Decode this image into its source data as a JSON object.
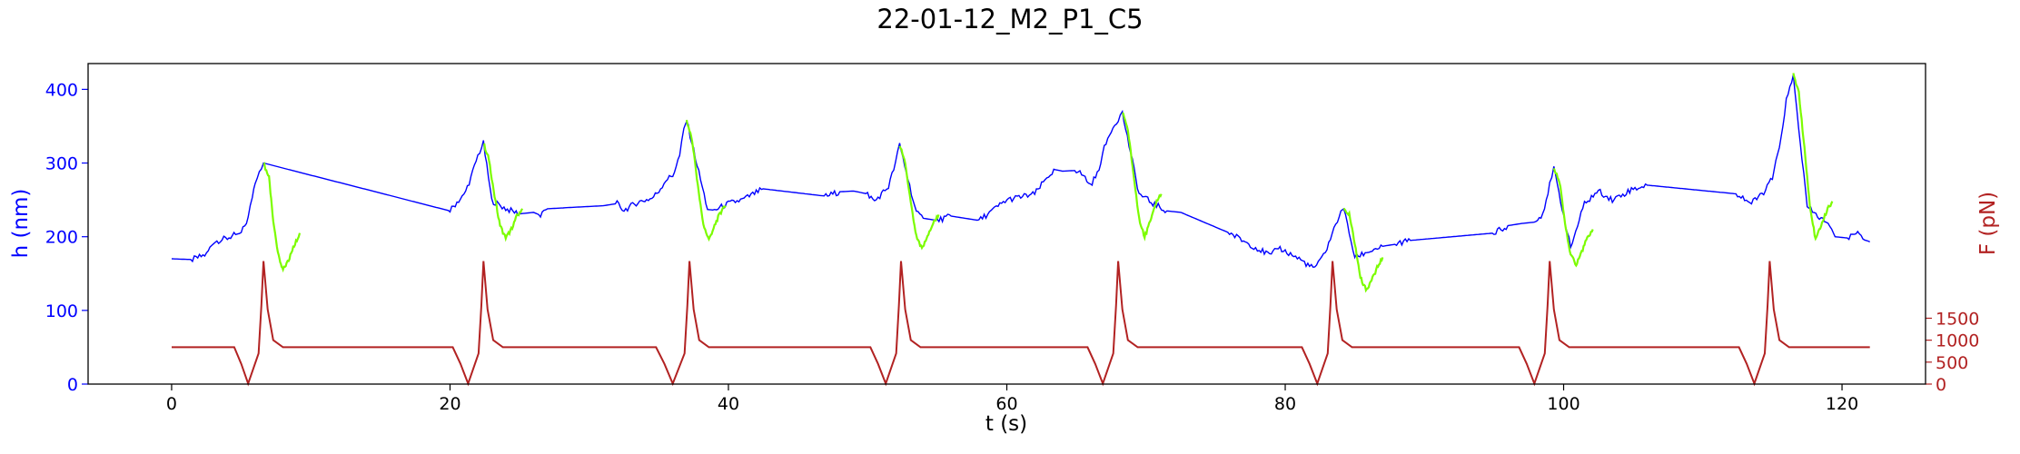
{
  "chart_data": {
    "type": "line",
    "title": "22-01-12_M2_P1_C5",
    "xlabel": "t (s)",
    "ylabel_left": "h (nm)",
    "ylabel_right": "F (pN)",
    "xlim": [
      -6,
      126
    ],
    "ylim_left": [
      0,
      435
    ],
    "ylim_right": [
      0,
      7300
    ],
    "xticks": [
      0,
      20,
      40,
      60,
      80,
      100,
      120
    ],
    "yticks_left": [
      0,
      100,
      200,
      300,
      400
    ],
    "yticks_right": [
      0,
      500,
      1000,
      1500
    ],
    "colors": {
      "height_trace": "#0000ff",
      "pulse_segment": "#7cfc00",
      "force_trace": "#b22222",
      "left_axis": "#0000ff",
      "right_axis": "#b22222"
    },
    "series": [
      {
        "axis": "left",
        "points": [
          [
            0,
            170
          ],
          [
            1.5,
            169
          ],
          [
            2.5,
            176
          ],
          [
            3,
            193
          ],
          [
            4,
            198
          ],
          [
            4.6,
            203
          ],
          [
            5,
            205
          ],
          [
            5.5,
            225
          ],
          [
            5.8,
            255
          ],
          [
            6,
            275
          ],
          [
            6.3,
            290
          ],
          [
            6.6,
            300
          ],
          [
            20,
            235
          ],
          [
            20.5,
            247
          ],
          [
            21,
            256
          ],
          [
            21.5,
            280
          ],
          [
            22,
            310
          ],
          [
            22.4,
            327
          ],
          [
            23,
            249
          ],
          [
            24,
            238
          ],
          [
            25,
            231
          ],
          [
            26,
            233
          ],
          [
            26.5,
            229
          ],
          [
            27,
            238
          ],
          [
            31,
            242
          ],
          [
            32,
            245
          ],
          [
            32.5,
            236
          ],
          [
            33.5,
            247
          ],
          [
            34.5,
            252
          ],
          [
            35,
            262
          ],
          [
            35.5,
            277
          ],
          [
            36,
            283
          ],
          [
            36.5,
            310
          ],
          [
            36.8,
            345
          ],
          [
            37,
            358
          ],
          [
            38.5,
            237
          ],
          [
            39,
            236
          ],
          [
            40,
            245
          ],
          [
            41,
            250
          ],
          [
            42,
            260
          ],
          [
            42.5,
            265
          ],
          [
            47,
            255
          ],
          [
            48,
            261
          ],
          [
            49,
            262
          ],
          [
            50,
            258
          ],
          [
            50.5,
            248
          ],
          [
            51,
            258
          ],
          [
            51.5,
            268
          ],
          [
            52,
            300
          ],
          [
            52.3,
            325
          ],
          [
            53.5,
            232
          ],
          [
            54,
            225
          ],
          [
            55,
            222
          ],
          [
            56,
            228
          ],
          [
            57,
            225
          ],
          [
            58,
            222
          ],
          [
            60,
            250
          ],
          [
            62,
            258
          ],
          [
            63,
            283
          ],
          [
            63.5,
            291
          ],
          [
            64,
            289
          ],
          [
            65,
            290
          ],
          [
            65.5,
            283
          ],
          [
            66,
            270
          ],
          [
            66.5,
            285
          ],
          [
            67,
            320
          ],
          [
            67.5,
            345
          ],
          [
            68,
            360
          ],
          [
            68.3,
            368
          ],
          [
            69.5,
            258
          ],
          [
            70.5,
            245
          ],
          [
            71.5,
            235
          ],
          [
            72.5,
            233
          ],
          [
            76,
            205
          ],
          [
            78,
            184
          ],
          [
            79,
            174
          ],
          [
            79.5,
            186
          ],
          [
            80,
            180
          ],
          [
            81,
            170
          ],
          [
            82,
            157
          ],
          [
            82.5,
            166
          ],
          [
            83,
            185
          ],
          [
            83.5,
            210
          ],
          [
            84,
            235
          ],
          [
            84.2,
            238
          ],
          [
            85,
            172
          ],
          [
            86,
            180
          ],
          [
            87,
            187
          ],
          [
            88,
            190
          ],
          [
            89,
            195
          ],
          [
            95,
            205
          ],
          [
            96,
            215
          ],
          [
            97,
            218
          ],
          [
            98,
            220
          ],
          [
            98.5,
            232
          ],
          [
            99,
            270
          ],
          [
            99.3,
            292
          ],
          [
            100.5,
            185
          ],
          [
            101.5,
            245
          ],
          [
            102.5,
            262
          ],
          [
            103.5,
            250
          ],
          [
            105,
            265
          ],
          [
            106,
            270
          ],
          [
            112.5,
            258
          ],
          [
            113.5,
            245
          ],
          [
            114.5,
            263
          ],
          [
            115,
            280
          ],
          [
            115.5,
            320
          ],
          [
            116,
            385
          ],
          [
            116.5,
            417
          ],
          [
            117.5,
            240
          ],
          [
            118,
            232
          ],
          [
            119,
            217
          ],
          [
            119.5,
            200
          ],
          [
            120.5,
            198
          ],
          [
            121,
            207
          ],
          [
            122,
            193
          ]
        ]
      },
      {
        "axis": "left",
        "segments": [
          [
            [
              6.6,
              300
            ],
            [
              7.0,
              280
            ],
            [
              7.3,
              220
            ],
            [
              7.7,
              172
            ],
            [
              8.0,
              155
            ],
            [
              8.4,
              168
            ],
            [
              8.8,
              188
            ],
            [
              9.2,
              205
            ]
          ],
          [
            [
              22.4,
              327
            ],
            [
              22.8,
              305
            ],
            [
              23.2,
              255
            ],
            [
              23.6,
              215
            ],
            [
              24.0,
              198
            ],
            [
              24.4,
              210
            ],
            [
              24.8,
              228
            ],
            [
              25.2,
              238
            ]
          ],
          [
            [
              37.0,
              358
            ],
            [
              37.4,
              330
            ],
            [
              37.8,
              270
            ],
            [
              38.2,
              215
            ],
            [
              38.6,
              196
            ],
            [
              39.0,
              215
            ],
            [
              39.4,
              232
            ],
            [
              39.8,
              242
            ]
          ],
          [
            [
              52.3,
              325
            ],
            [
              52.7,
              300
            ],
            [
              53.1,
              245
            ],
            [
              53.5,
              200
            ],
            [
              53.9,
              183
            ],
            [
              54.3,
              200
            ],
            [
              54.7,
              218
            ],
            [
              55.1,
              230
            ]
          ],
          [
            [
              68.3,
              370
            ],
            [
              68.7,
              345
            ],
            [
              69.1,
              285
            ],
            [
              69.5,
              225
            ],
            [
              69.9,
              200
            ],
            [
              70.3,
              220
            ],
            [
              70.7,
              245
            ],
            [
              71.1,
              258
            ]
          ],
          [
            [
              84.2,
              238
            ],
            [
              84.6,
              230
            ],
            [
              85.0,
              190
            ],
            [
              85.4,
              145
            ],
            [
              85.8,
              128
            ],
            [
              86.2,
              140
            ],
            [
              86.6,
              158
            ],
            [
              87.0,
              172
            ]
          ],
          [
            [
              99.3,
              292
            ],
            [
              99.7,
              275
            ],
            [
              100.1,
              220
            ],
            [
              100.5,
              175
            ],
            [
              100.9,
              162
            ],
            [
              101.3,
              180
            ],
            [
              101.7,
              198
            ],
            [
              102.1,
              210
            ]
          ],
          [
            [
              116.5,
              420
            ],
            [
              116.9,
              395
            ],
            [
              117.3,
              320
            ],
            [
              117.7,
              240
            ],
            [
              118.1,
              196
            ],
            [
              118.5,
              215
            ],
            [
              118.9,
              235
            ],
            [
              119.3,
              248
            ]
          ]
        ]
      },
      {
        "axis": "right",
        "baseline": 840,
        "points": [
          [
            0,
            840
          ],
          [
            20,
            840
          ],
          [
            35,
            840
          ],
          [
            50,
            840
          ],
          [
            66,
            840
          ],
          [
            82,
            840
          ],
          [
            97,
            840
          ],
          [
            113,
            840
          ],
          [
            122,
            840
          ]
        ],
        "pulses": [
          {
            "dip_start": 4.5,
            "dip_min": 5.5,
            "peak": 6.6,
            "end": 8.0,
            "dip_value": 10,
            "peak_value": 2800
          },
          {
            "dip_start": 20.2,
            "dip_min": 21.3,
            "peak": 22.4,
            "end": 23.8,
            "dip_value": 10,
            "peak_value": 2800
          },
          {
            "dip_start": 34.8,
            "dip_min": 36.0,
            "peak": 37.2,
            "end": 38.6,
            "dip_value": 10,
            "peak_value": 2800
          },
          {
            "dip_start": 50.2,
            "dip_min": 51.3,
            "peak": 52.4,
            "end": 53.8,
            "dip_value": 10,
            "peak_value": 2800
          },
          {
            "dip_start": 65.8,
            "dip_min": 66.9,
            "peak": 68.0,
            "end": 69.4,
            "dip_value": 10,
            "peak_value": 2800
          },
          {
            "dip_start": 81.2,
            "dip_min": 82.3,
            "peak": 83.4,
            "end": 84.8,
            "dip_value": 10,
            "peak_value": 2800
          },
          {
            "dip_start": 96.8,
            "dip_min": 97.9,
            "peak": 99.0,
            "end": 100.4,
            "dip_value": 10,
            "peak_value": 2800
          },
          {
            "dip_start": 112.6,
            "dip_min": 113.7,
            "peak": 114.8,
            "end": 116.2,
            "dip_value": 10,
            "peak_value": 2800
          }
        ]
      }
    ]
  }
}
